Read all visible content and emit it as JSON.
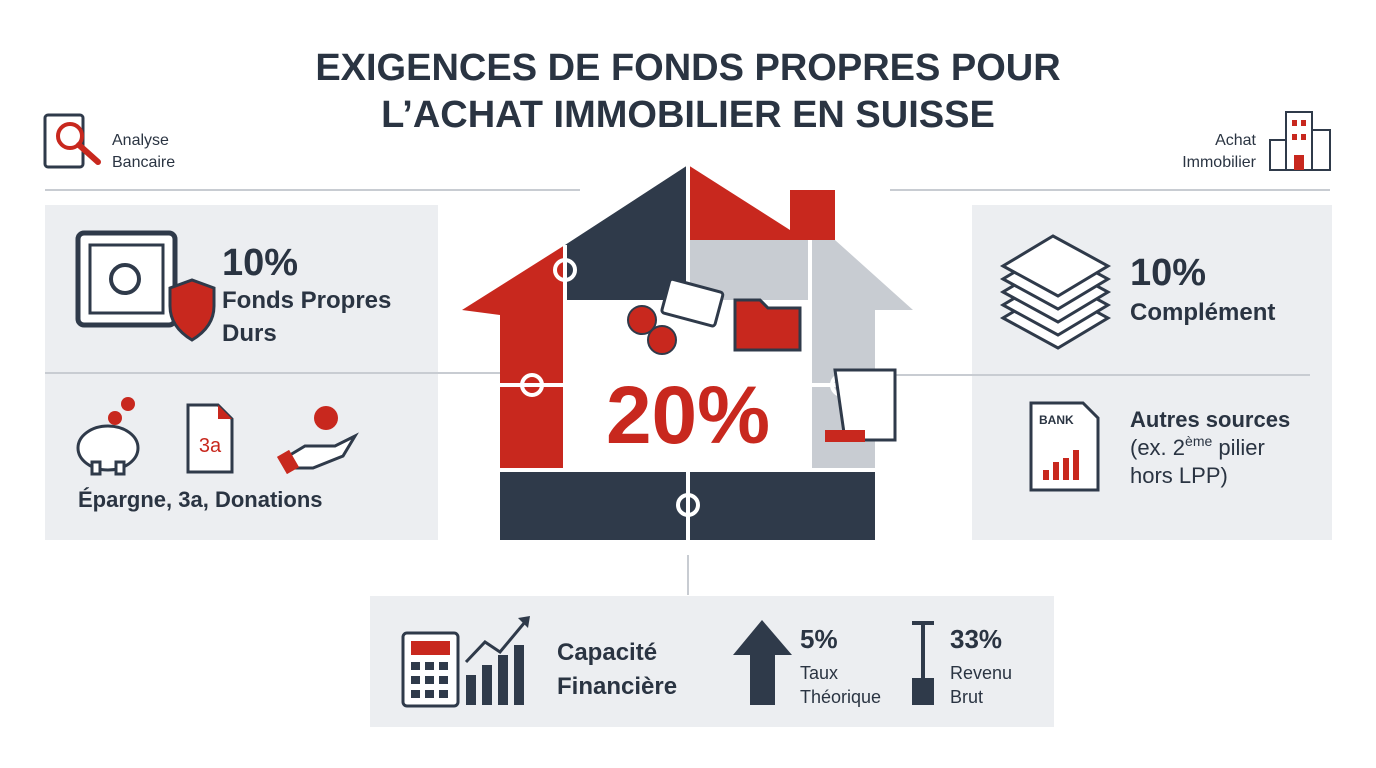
{
  "header": {
    "title_lines": [
      "EXIGENCES DE FONDS PROPRES POUR",
      "L’ACHAT IMMOBILIER EN SUISSE"
    ],
    "left_label": [
      "Analyse",
      "Bancaire"
    ],
    "right_label": [
      "Achat",
      "Immobilier"
    ]
  },
  "left_panel": {
    "percent": "10%",
    "label_lines": [
      "Fonds Propres",
      "Durs"
    ],
    "icon_3a": "3a",
    "sources": "Épargne, 3a, Donations"
  },
  "center": {
    "percent": "20%"
  },
  "right_panel": {
    "percent": "10%",
    "label": "Complément",
    "bank_icon": "BANK",
    "title": "Autres sources",
    "detail_parts": [
      "(ex. 2",
      "ème",
      " pilier"
    ],
    "detail_line2": "hors LPP)"
  },
  "bottom_panel": {
    "label_lines": [
      "Capacité",
      "Financière"
    ],
    "rate": {
      "percent": "5%",
      "label_lines": [
        "Taux",
        "Théorique"
      ]
    },
    "income": {
      "percent": "33%",
      "label_lines": [
        "Revenu",
        "Brut"
      ]
    }
  }
}
